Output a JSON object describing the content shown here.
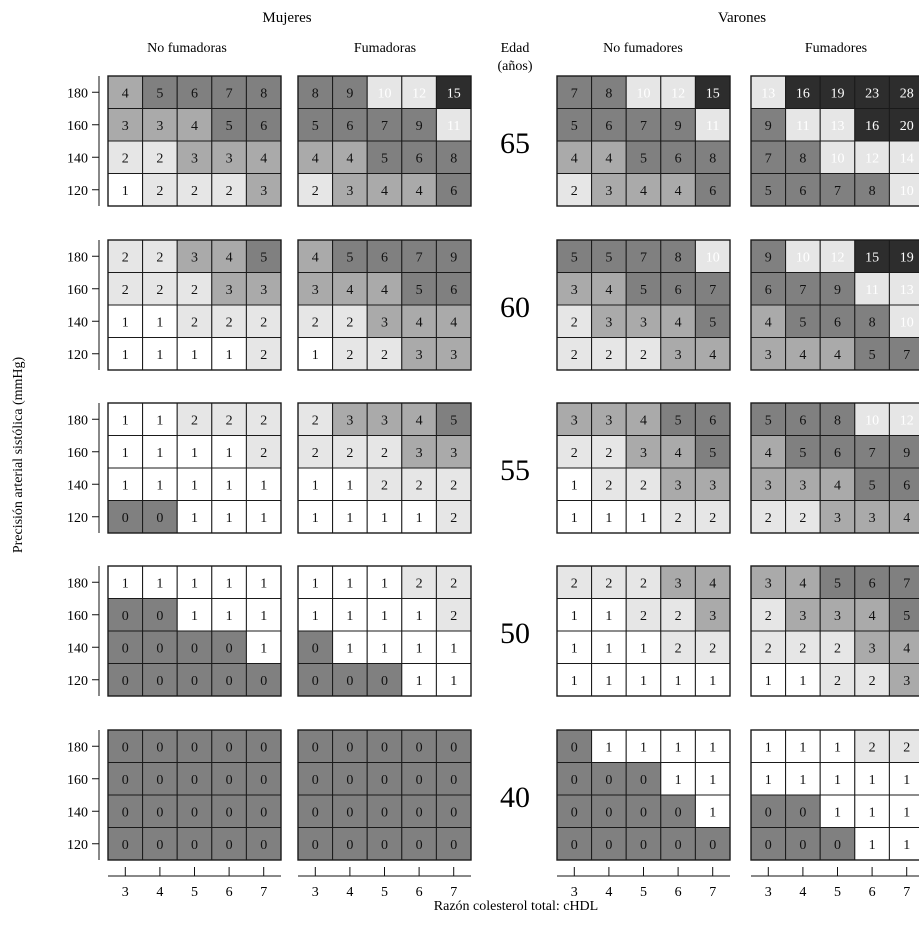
{
  "labels": {
    "women": "Mujeres",
    "men": "Varones",
    "women_nonsmokers": "No fumadoras",
    "women_smokers": "Fumadoras",
    "men_nonsmokers": "No fumadores",
    "men_smokers": "Fumadores",
    "age_line1": "Edad",
    "age_line2": "(años)",
    "ylabel": "Precisión arterial sistólica (mmHg)",
    "xlabel": "Razón colesterol total: cHDL"
  },
  "colors": {
    "white": "#ffffff",
    "light": "#e6e6e6",
    "medium": "#aaaaaa",
    "dark": "#808080",
    "black": "#2d2d2d",
    "grid": "#1a1a1a"
  },
  "chart_data": {
    "type": "heatmap",
    "title": "",
    "xlabel": "Razón colesterol total: cHDL",
    "ylabel": "Precisión arterial sistólica (mmHg)",
    "x_ticks": [
      3,
      4,
      5,
      6,
      7
    ],
    "y_ticks": [
      180,
      160,
      140,
      120
    ],
    "ages": [
      65,
      60,
      55,
      50,
      40
    ],
    "groups": [
      "Mujeres - No fumadoras",
      "Mujeres - Fumadoras",
      "Varones - No fumadores",
      "Varones - Fumadores"
    ],
    "values": {
      "65": [
        [
          [
            4,
            5,
            6,
            7,
            8
          ],
          [
            3,
            3,
            4,
            5,
            6
          ],
          [
            2,
            2,
            3,
            3,
            4
          ],
          [
            1,
            2,
            2,
            2,
            3
          ]
        ],
        [
          [
            8,
            9,
            10,
            12,
            15
          ],
          [
            5,
            6,
            7,
            9,
            11
          ],
          [
            4,
            4,
            5,
            6,
            8
          ],
          [
            2,
            3,
            4,
            4,
            6
          ]
        ],
        [
          [
            7,
            8,
            10,
            12,
            15
          ],
          [
            5,
            6,
            7,
            9,
            11
          ],
          [
            4,
            4,
            5,
            6,
            8
          ],
          [
            2,
            3,
            4,
            4,
            6
          ]
        ],
        [
          [
            13,
            16,
            19,
            23,
            28
          ],
          [
            9,
            11,
            13,
            16,
            20
          ],
          [
            7,
            8,
            10,
            12,
            14
          ],
          [
            5,
            6,
            7,
            8,
            10
          ]
        ]
      ],
      "60": [
        [
          [
            2,
            2,
            3,
            4,
            5
          ],
          [
            2,
            2,
            2,
            3,
            3
          ],
          [
            1,
            1,
            2,
            2,
            2
          ],
          [
            1,
            1,
            1,
            1,
            2
          ]
        ],
        [
          [
            4,
            5,
            6,
            7,
            9
          ],
          [
            3,
            4,
            4,
            5,
            6
          ],
          [
            2,
            2,
            3,
            4,
            4
          ],
          [
            1,
            2,
            2,
            3,
            3
          ]
        ],
        [
          [
            5,
            5,
            7,
            8,
            10
          ],
          [
            3,
            4,
            5,
            6,
            7
          ],
          [
            2,
            3,
            3,
            4,
            5
          ],
          [
            2,
            2,
            2,
            3,
            4
          ]
        ],
        [
          [
            9,
            10,
            12,
            15,
            19
          ],
          [
            6,
            7,
            9,
            11,
            13
          ],
          [
            4,
            5,
            6,
            8,
            10
          ],
          [
            3,
            4,
            4,
            5,
            7
          ]
        ]
      ],
      "55": [
        [
          [
            1,
            1,
            2,
            2,
            2
          ],
          [
            1,
            1,
            1,
            1,
            2
          ],
          [
            1,
            1,
            1,
            1,
            1
          ],
          [
            0,
            0,
            1,
            1,
            1
          ]
        ],
        [
          [
            2,
            3,
            3,
            4,
            5
          ],
          [
            2,
            2,
            2,
            3,
            3
          ],
          [
            1,
            1,
            2,
            2,
            2
          ],
          [
            1,
            1,
            1,
            1,
            2
          ]
        ],
        [
          [
            3,
            3,
            4,
            5,
            6
          ],
          [
            2,
            2,
            3,
            4,
            5
          ],
          [
            1,
            2,
            2,
            3,
            3
          ],
          [
            1,
            1,
            1,
            2,
            2
          ]
        ],
        [
          [
            5,
            6,
            8,
            10,
            12
          ],
          [
            4,
            5,
            6,
            7,
            9
          ],
          [
            3,
            3,
            4,
            5,
            6
          ],
          [
            2,
            2,
            3,
            3,
            4
          ]
        ]
      ],
      "50": [
        [
          [
            1,
            1,
            1,
            1,
            1
          ],
          [
            0,
            0,
            1,
            1,
            1
          ],
          [
            0,
            0,
            0,
            0,
            1
          ],
          [
            0,
            0,
            0,
            0,
            0
          ]
        ],
        [
          [
            1,
            1,
            1,
            2,
            2
          ],
          [
            1,
            1,
            1,
            1,
            2
          ],
          [
            0,
            1,
            1,
            1,
            1
          ],
          [
            0,
            0,
            0,
            1,
            1
          ]
        ],
        [
          [
            2,
            2,
            2,
            3,
            4
          ],
          [
            1,
            1,
            2,
            2,
            3
          ],
          [
            1,
            1,
            1,
            2,
            2
          ],
          [
            1,
            1,
            1,
            1,
            1
          ]
        ],
        [
          [
            3,
            4,
            5,
            6,
            7
          ],
          [
            2,
            3,
            3,
            4,
            5
          ],
          [
            2,
            2,
            2,
            3,
            4
          ],
          [
            1,
            1,
            2,
            2,
            3
          ]
        ]
      ],
      "40": [
        [
          [
            0,
            0,
            0,
            0,
            0
          ],
          [
            0,
            0,
            0,
            0,
            0
          ],
          [
            0,
            0,
            0,
            0,
            0
          ],
          [
            0,
            0,
            0,
            0,
            0
          ]
        ],
        [
          [
            0,
            0,
            0,
            0,
            0
          ],
          [
            0,
            0,
            0,
            0,
            0
          ],
          [
            0,
            0,
            0,
            0,
            0
          ],
          [
            0,
            0,
            0,
            0,
            0
          ]
        ],
        [
          [
            0,
            1,
            1,
            1,
            1
          ],
          [
            0,
            0,
            0,
            1,
            1
          ],
          [
            0,
            0,
            0,
            0,
            1
          ],
          [
            0,
            0,
            0,
            0,
            0
          ]
        ],
        [
          [
            1,
            1,
            1,
            2,
            2
          ],
          [
            1,
            1,
            1,
            1,
            1
          ],
          [
            0,
            0,
            1,
            1,
            1
          ],
          [
            0,
            0,
            0,
            1,
            1
          ]
        ]
      ]
    },
    "legend": "none",
    "grid": true
  }
}
